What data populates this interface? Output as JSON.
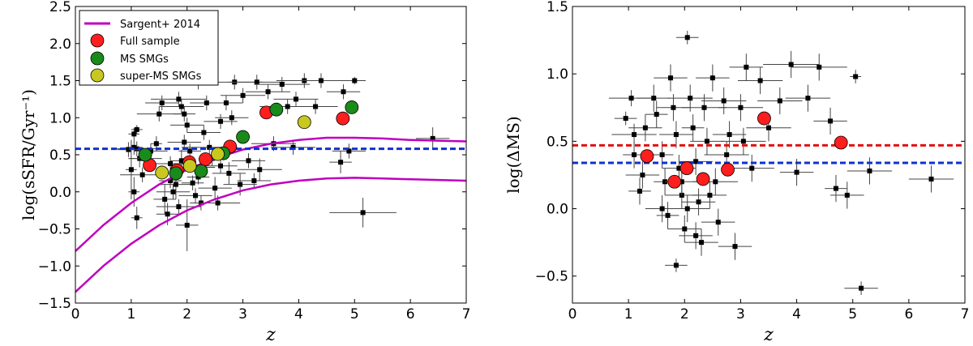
{
  "chart_data": [
    {
      "type": "scatter",
      "panel": "left",
      "xlabel": "z",
      "ylabel": "log(sSFR/Gyr⁻¹)",
      "xlim": [
        0,
        7
      ],
      "ylim": [
        -1.5,
        2.5
      ],
      "xticks": [
        "0",
        "1",
        "2",
        "3",
        "4",
        "5",
        "6",
        "7"
      ],
      "yticks": [
        "−1.5",
        "−1.0",
        "−0.5",
        "0.0",
        "0.5",
        "1.0",
        "1.5",
        "2.0",
        "2.5"
      ],
      "legend": [
        {
          "label": "Sargent+ 2014",
          "kind": "line",
          "color": "#bf00bf"
        },
        {
          "label": "Full sample",
          "kind": "marker",
          "color": "#ff1e1e"
        },
        {
          "label": "MS SMGs",
          "kind": "marker",
          "color": "#1a8a1a"
        },
        {
          "label": "super-MS SMGs",
          "kind": "marker",
          "color": "#c8c820"
        }
      ],
      "hline": {
        "y": 0.58,
        "color": "#1030d0"
      },
      "sargent_curves": [
        {
          "name": "upper",
          "points": [
            [
              0,
              -0.8
            ],
            [
              0.5,
              -0.45
            ],
            [
              1,
              -0.15
            ],
            [
              1.5,
              0.1
            ],
            [
              2,
              0.3
            ],
            [
              2.5,
              0.45
            ],
            [
              3,
              0.57
            ],
            [
              3.5,
              0.65
            ],
            [
              4,
              0.7
            ],
            [
              4.5,
              0.73
            ],
            [
              5,
              0.73
            ],
            [
              5.5,
              0.72
            ],
            [
              6,
              0.7
            ],
            [
              6.5,
              0.69
            ],
            [
              7,
              0.68
            ]
          ]
        },
        {
          "name": "lower",
          "points": [
            [
              0,
              -1.35
            ],
            [
              0.5,
              -1.0
            ],
            [
              1,
              -0.7
            ],
            [
              1.5,
              -0.45
            ],
            [
              2,
              -0.25
            ],
            [
              2.5,
              -0.1
            ],
            [
              3,
              0.02
            ],
            [
              3.5,
              0.1
            ],
            [
              4,
              0.15
            ],
            [
              4.5,
              0.18
            ],
            [
              5,
              0.19
            ],
            [
              5.5,
              0.18
            ],
            [
              6,
              0.17
            ],
            [
              6.5,
              0.16
            ],
            [
              7,
              0.15
            ]
          ]
        }
      ],
      "points": [
        {
          "x": 1.05,
          "y": 0.78,
          "xe": 0.1,
          "ye": 0.08
        },
        {
          "x": 1.1,
          "y": 0.84,
          "xe": 0.1,
          "ye": 0.06
        },
        {
          "x": 1.05,
          "y": 0.6,
          "xe": 0.15,
          "ye": 0.1
        },
        {
          "x": 1.1,
          "y": 0.58,
          "xe": 0.4,
          "ye": 0.1
        },
        {
          "x": 0.95,
          "y": 0.57,
          "xe": 0.2,
          "ye": 0.1
        },
        {
          "x": 1.15,
          "y": 0.45,
          "xe": 0.2,
          "ye": 0.12
        },
        {
          "x": 1.0,
          "y": 0.3,
          "xe": 0.1,
          "ye": 0.4
        },
        {
          "x": 1.05,
          "y": 0.0,
          "xe": 0.1,
          "ye": 0.2
        },
        {
          "x": 1.1,
          "y": -0.35,
          "xe": 0.1,
          "ye": 0.15
        },
        {
          "x": 1.2,
          "y": 0.23,
          "xe": 0.4,
          "ye": 0.1
        },
        {
          "x": 1.25,
          "y": 0.45,
          "xe": 0.3,
          "ye": 0.1
        },
        {
          "x": 1.35,
          "y": 0.55,
          "xe": 0.3,
          "ye": 0.1
        },
        {
          "x": 1.45,
          "y": 0.65,
          "xe": 0.1,
          "ye": 0.1
        },
        {
          "x": 1.5,
          "y": 1.05,
          "xe": 0.4,
          "ye": 0.1
        },
        {
          "x": 1.55,
          "y": 1.2,
          "xe": 0.3,
          "ye": 0.1
        },
        {
          "x": 1.6,
          "y": -0.1,
          "xe": 0.2,
          "ye": 0.2
        },
        {
          "x": 1.65,
          "y": -0.3,
          "xe": 0.2,
          "ye": 0.15
        },
        {
          "x": 1.7,
          "y": 0.15,
          "xe": 0.2,
          "ye": 0.1
        },
        {
          "x": 1.75,
          "y": 0.0,
          "xe": 0.3,
          "ye": 0.1
        },
        {
          "x": 1.8,
          "y": 0.1,
          "xe": 0.3,
          "ye": 0.2
        },
        {
          "x": 1.85,
          "y": -0.2,
          "xe": 0.4,
          "ye": 0.1
        },
        {
          "x": 1.9,
          "y": 0.42,
          "xe": 0.2,
          "ye": 0.15
        },
        {
          "x": 1.95,
          "y": 0.67,
          "xe": 0.3,
          "ye": 0.1
        },
        {
          "x": 1.9,
          "y": 1.15,
          "xe": 0.4,
          "ye": 0.1
        },
        {
          "x": 1.85,
          "y": 1.25,
          "xe": 0.5,
          "ye": 0.1
        },
        {
          "x": 1.95,
          "y": 1.05,
          "xe": 0.2,
          "ye": 0.1
        },
        {
          "x": 2.0,
          "y": 0.9,
          "xe": 0.3,
          "ye": 0.1
        },
        {
          "x": 2.05,
          "y": 0.55,
          "xe": 0.2,
          "ye": 0.1
        },
        {
          "x": 2.1,
          "y": 0.12,
          "xe": 0.2,
          "ye": 0.1
        },
        {
          "x": 2.15,
          "y": -0.05,
          "xe": 0.3,
          "ye": 0.1
        },
        {
          "x": 2.2,
          "y": 0.2,
          "xe": 0.2,
          "ye": 0.1
        },
        {
          "x": 2.25,
          "y": -0.15,
          "xe": 0.2,
          "ye": 0.1
        },
        {
          "x": 2.0,
          "y": -0.45,
          "xe": 0.2,
          "ye": 0.35
        },
        {
          "x": 2.3,
          "y": 0.8,
          "xe": 0.3,
          "ye": 0.1
        },
        {
          "x": 2.35,
          "y": 1.2,
          "xe": 0.3,
          "ye": 0.1
        },
        {
          "x": 2.4,
          "y": 0.6,
          "xe": 0.5,
          "ye": 0.1
        },
        {
          "x": 2.45,
          "y": 0.45,
          "xe": 0.2,
          "ye": 0.1
        },
        {
          "x": 2.5,
          "y": 0.05,
          "xe": 0.3,
          "ye": 0.15
        },
        {
          "x": 2.55,
          "y": -0.15,
          "xe": 0.4,
          "ye": 0.1
        },
        {
          "x": 2.6,
          "y": 0.95,
          "xe": 0.3,
          "ye": 0.1
        },
        {
          "x": 2.7,
          "y": 1.2,
          "xe": 0.3,
          "ye": 0.1
        },
        {
          "x": 2.75,
          "y": 0.25,
          "xe": 0.3,
          "ye": 0.15
        },
        {
          "x": 2.8,
          "y": 1.0,
          "xe": 0.3,
          "ye": 0.1
        },
        {
          "x": 2.85,
          "y": 1.48,
          "xe": 0.5,
          "ye": 0.1
        },
        {
          "x": 3.0,
          "y": 1.3,
          "xe": 0.4,
          "ye": 0.1
        },
        {
          "x": 3.1,
          "y": 0.42,
          "xe": 0.3,
          "ye": 0.1
        },
        {
          "x": 3.2,
          "y": 0.15,
          "xe": 0.3,
          "ye": 0.1
        },
        {
          "x": 3.25,
          "y": 1.48,
          "xe": 0.5,
          "ye": 0.1
        },
        {
          "x": 3.3,
          "y": 0.3,
          "xe": 0.4,
          "ye": 0.15
        },
        {
          "x": 3.45,
          "y": 1.35,
          "xe": 0.4,
          "ye": 0.1
        },
        {
          "x": 3.55,
          "y": 0.65,
          "xe": 0.4,
          "ye": 0.1
        },
        {
          "x": 3.7,
          "y": 1.45,
          "xe": 0.5,
          "ye": 0.1
        },
        {
          "x": 3.8,
          "y": 1.15,
          "xe": 0.5,
          "ye": 0.1
        },
        {
          "x": 3.95,
          "y": 1.25,
          "xe": 0.4,
          "ye": 0.1
        },
        {
          "x": 4.1,
          "y": 1.5,
          "xe": 0.5,
          "ye": 0.1
        },
        {
          "x": 4.3,
          "y": 1.15,
          "xe": 0.4,
          "ye": 0.1
        },
        {
          "x": 4.4,
          "y": 1.5,
          "xe": 0.5,
          "ye": 0.1
        },
        {
          "x": 4.75,
          "y": 0.4,
          "xe": 0.2,
          "ye": 0.15
        },
        {
          "x": 4.8,
          "y": 1.35,
          "xe": 0.3,
          "ye": 0.1
        },
        {
          "x": 5.0,
          "y": 1.5,
          "xe": 0.2,
          "ye": 0.05
        },
        {
          "x": 5.15,
          "y": -0.28,
          "xe": 0.6,
          "ye": 0.2
        },
        {
          "x": 4.9,
          "y": 0.55,
          "xe": 0.3,
          "ye": 0.1
        },
        {
          "x": 6.4,
          "y": 0.72,
          "xe": 0.3,
          "ye": 0.15
        },
        {
          "x": 2.2,
          "y": 1.48,
          "xe": 0.3,
          "ye": 0.1
        },
        {
          "x": 2.95,
          "y": 0.1,
          "xe": 0.3,
          "ye": 0.15
        },
        {
          "x": 2.3,
          "y": 0.33,
          "xe": 0.2,
          "ye": 0.1
        },
        {
          "x": 1.7,
          "y": 0.38,
          "xe": 0.3,
          "ye": 0.1
        },
        {
          "x": 2.6,
          "y": 0.35,
          "xe": 0.3,
          "ye": 0.1
        },
        {
          "x": 3.9,
          "y": 0.6,
          "xe": 0.4,
          "ye": 0.1
        }
      ],
      "full_sample": [
        [
          1.33,
          0.36
        ],
        [
          1.82,
          0.29
        ],
        [
          2.04,
          0.4
        ],
        [
          2.33,
          0.44
        ],
        [
          2.77,
          0.61
        ],
        [
          3.42,
          1.07
        ],
        [
          4.79,
          0.99
        ]
      ],
      "ms_smgs": [
        [
          1.25,
          0.5
        ],
        [
          1.8,
          0.25
        ],
        [
          2.25,
          0.28
        ],
        [
          2.65,
          0.52
        ],
        [
          3.0,
          0.74
        ],
        [
          3.6,
          1.11
        ],
        [
          4.95,
          1.14
        ]
      ],
      "super_ms_smgs": [
        [
          1.55,
          0.26
        ],
        [
          2.05,
          0.35
        ],
        [
          2.55,
          0.51
        ],
        [
          4.1,
          0.94
        ]
      ]
    },
    {
      "type": "scatter",
      "panel": "right",
      "xlabel": "z",
      "ylabel": "log(ΔMS)",
      "xlim": [
        0,
        7
      ],
      "ylim": [
        -0.7,
        1.5
      ],
      "xticks": [
        "0",
        "1",
        "2",
        "3",
        "4",
        "5",
        "6",
        "7"
      ],
      "yticks": [
        "−0.5",
        "0.0",
        "0.5",
        "1.0",
        "1.5"
      ],
      "hlines": [
        {
          "y": 0.47,
          "color": "#e01010"
        },
        {
          "y": 0.34,
          "color": "#1030d0"
        }
      ],
      "points": [
        {
          "x": 1.05,
          "y": 0.82,
          "xe": 0.4,
          "ye": 0.06
        },
        {
          "x": 0.95,
          "y": 0.67,
          "xe": 0.2,
          "ye": 0.05
        },
        {
          "x": 1.1,
          "y": 0.55,
          "xe": 0.4,
          "ye": 0.08
        },
        {
          "x": 1.1,
          "y": 0.4,
          "xe": 0.2,
          "ye": 0.1
        },
        {
          "x": 1.25,
          "y": 0.25,
          "xe": 0.3,
          "ye": 0.1
        },
        {
          "x": 1.2,
          "y": 0.13,
          "xe": 0.2,
          "ye": 0.1
        },
        {
          "x": 1.3,
          "y": 0.6,
          "xe": 0.3,
          "ye": 0.1
        },
        {
          "x": 1.45,
          "y": 0.82,
          "xe": 0.3,
          "ye": 0.1
        },
        {
          "x": 1.5,
          "y": 0.7,
          "xe": 0.2,
          "ye": 0.1
        },
        {
          "x": 1.6,
          "y": 0.4,
          "xe": 0.2,
          "ye": 0.1
        },
        {
          "x": 1.65,
          "y": 0.2,
          "xe": 0.2,
          "ye": 0.1
        },
        {
          "x": 1.7,
          "y": -0.05,
          "xe": 0.2,
          "ye": 0.1
        },
        {
          "x": 1.75,
          "y": 0.97,
          "xe": 0.3,
          "ye": 0.1
        },
        {
          "x": 1.8,
          "y": 0.75,
          "xe": 0.3,
          "ye": 0.1
        },
        {
          "x": 1.85,
          "y": 0.55,
          "xe": 0.3,
          "ye": 0.1
        },
        {
          "x": 1.9,
          "y": 0.3,
          "xe": 0.3,
          "ye": 0.1
        },
        {
          "x": 1.95,
          "y": 0.1,
          "xe": 0.3,
          "ye": 0.1
        },
        {
          "x": 2.0,
          "y": -0.15,
          "xe": 0.3,
          "ye": 0.1
        },
        {
          "x": 1.85,
          "y": -0.42,
          "xe": 0.2,
          "ye": 0.05
        },
        {
          "x": 2.05,
          "y": 1.27,
          "xe": 0.2,
          "ye": 0.05
        },
        {
          "x": 2.1,
          "y": 0.82,
          "xe": 0.4,
          "ye": 0.1
        },
        {
          "x": 2.15,
          "y": 0.6,
          "xe": 0.2,
          "ye": 0.1
        },
        {
          "x": 2.2,
          "y": 0.35,
          "xe": 0.3,
          "ye": 0.1
        },
        {
          "x": 2.25,
          "y": 0.05,
          "xe": 0.3,
          "ye": 0.1
        },
        {
          "x": 2.3,
          "y": -0.25,
          "xe": 0.3,
          "ye": 0.1
        },
        {
          "x": 2.35,
          "y": 0.75,
          "xe": 0.4,
          "ye": 0.1
        },
        {
          "x": 2.4,
          "y": 0.5,
          "xe": 0.3,
          "ye": 0.1
        },
        {
          "x": 2.5,
          "y": 0.97,
          "xe": 0.3,
          "ye": 0.1
        },
        {
          "x": 2.55,
          "y": 0.2,
          "xe": 0.4,
          "ye": 0.1
        },
        {
          "x": 2.6,
          "y": -0.1,
          "xe": 0.3,
          "ye": 0.1
        },
        {
          "x": 2.7,
          "y": 0.8,
          "xe": 0.4,
          "ye": 0.1
        },
        {
          "x": 2.8,
          "y": 0.55,
          "xe": 0.3,
          "ye": 0.1
        },
        {
          "x": 2.9,
          "y": -0.28,
          "xe": 0.3,
          "ye": 0.1
        },
        {
          "x": 3.0,
          "y": 0.75,
          "xe": 0.4,
          "ye": 0.1
        },
        {
          "x": 3.1,
          "y": 1.05,
          "xe": 0.3,
          "ye": 0.1
        },
        {
          "x": 3.2,
          "y": 0.3,
          "xe": 0.4,
          "ye": 0.1
        },
        {
          "x": 3.35,
          "y": 0.95,
          "xe": 0.4,
          "ye": 0.1
        },
        {
          "x": 3.5,
          "y": 0.6,
          "xe": 0.4,
          "ye": 0.1
        },
        {
          "x": 3.7,
          "y": 0.8,
          "xe": 0.4,
          "ye": 0.1
        },
        {
          "x": 3.9,
          "y": 1.07,
          "xe": 0.5,
          "ye": 0.1
        },
        {
          "x": 4.0,
          "y": 0.27,
          "xe": 0.3,
          "ye": 0.1
        },
        {
          "x": 4.2,
          "y": 0.82,
          "xe": 0.4,
          "ye": 0.1
        },
        {
          "x": 4.4,
          "y": 1.05,
          "xe": 0.5,
          "ye": 0.1
        },
        {
          "x": 4.6,
          "y": 0.65,
          "xe": 0.3,
          "ye": 0.1
        },
        {
          "x": 4.7,
          "y": 0.15,
          "xe": 0.2,
          "ye": 0.1
        },
        {
          "x": 4.9,
          "y": 0.1,
          "xe": 0.3,
          "ye": 0.1
        },
        {
          "x": 5.05,
          "y": 0.98,
          "xe": 0.1,
          "ye": 0.05
        },
        {
          "x": 5.3,
          "y": 0.28,
          "xe": 0.4,
          "ye": 0.1
        },
        {
          "x": 5.15,
          "y": -0.59,
          "xe": 0.3,
          "ye": 0.05
        },
        {
          "x": 6.4,
          "y": 0.22,
          "xe": 0.4,
          "ye": 0.1
        },
        {
          "x": 2.05,
          "y": 0.0,
          "xe": 0.4,
          "ye": 0.1
        },
        {
          "x": 2.45,
          "y": 0.1,
          "xe": 0.3,
          "ye": 0.1
        },
        {
          "x": 1.95,
          "y": 0.2,
          "xe": 0.3,
          "ye": 0.1
        },
        {
          "x": 2.75,
          "y": 0.4,
          "xe": 0.4,
          "ye": 0.1
        },
        {
          "x": 3.05,
          "y": 0.5,
          "xe": 0.4,
          "ye": 0.1
        },
        {
          "x": 2.2,
          "y": -0.2,
          "xe": 0.3,
          "ye": 0.1
        },
        {
          "x": 1.6,
          "y": 0.0,
          "xe": 0.3,
          "ye": 0.1
        }
      ],
      "full_sample": [
        [
          1.33,
          0.39
        ],
        [
          1.82,
          0.2
        ],
        [
          2.04,
          0.3
        ],
        [
          2.33,
          0.22
        ],
        [
          2.77,
          0.29
        ],
        [
          3.42,
          0.67
        ],
        [
          4.79,
          0.49
        ]
      ]
    }
  ]
}
